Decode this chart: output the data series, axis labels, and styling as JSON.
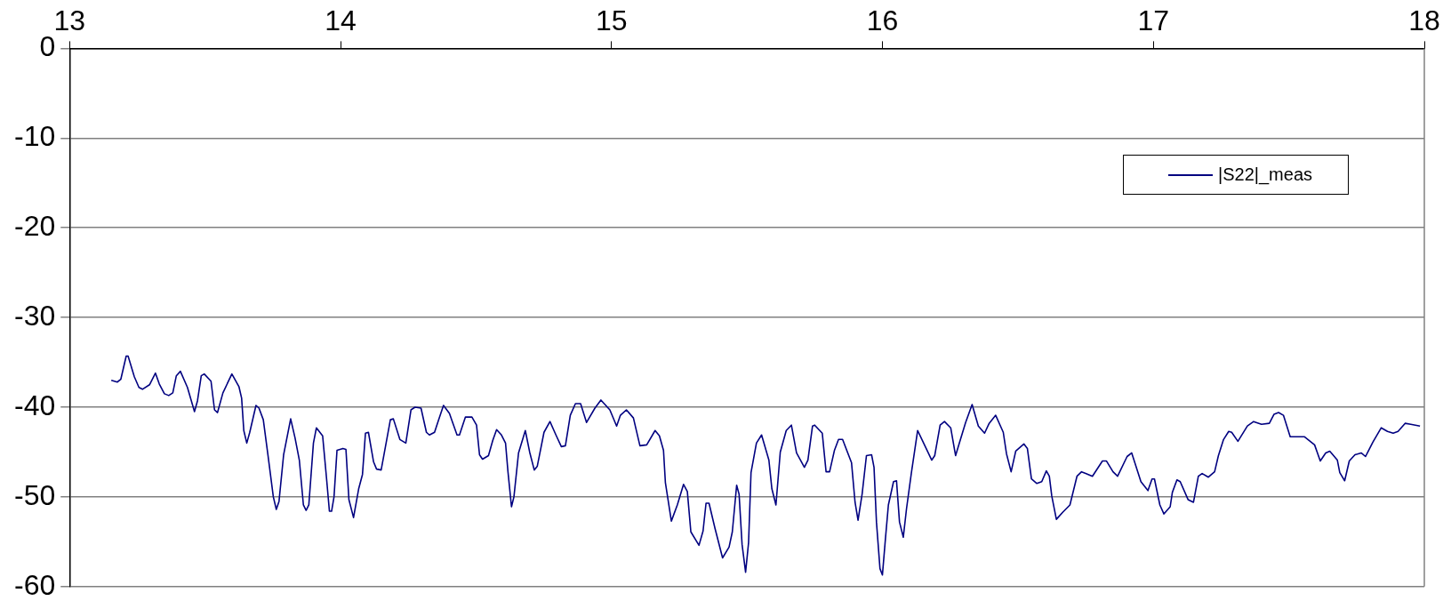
{
  "chart_data": {
    "type": "line",
    "xlim": [
      13,
      18
    ],
    "xticks": [
      13,
      14,
      15,
      16,
      17,
      18
    ],
    "ylim": [
      -60,
      0
    ],
    "yticks": [
      -60,
      -50,
      -40,
      -30,
      -20,
      -10,
      0
    ],
    "grid": "y",
    "legend": "top right",
    "marker": "none",
    "line_style": "solid",
    "series": [
      {
        "name": "|S22|_meas",
        "color": "#000080",
        "x": [
          13.154,
          13.176,
          13.189,
          13.209,
          13.216,
          13.239,
          13.256,
          13.269,
          13.295,
          13.317,
          13.331,
          13.35,
          13.366,
          13.381,
          13.394,
          13.409,
          13.435,
          13.461,
          13.472,
          13.486,
          13.497,
          13.522,
          13.535,
          13.546,
          13.566,
          13.599,
          13.625,
          13.635,
          13.643,
          13.654,
          13.665,
          13.688,
          13.699,
          13.715,
          13.732,
          13.752,
          13.763,
          13.773,
          13.79,
          13.816,
          13.832,
          13.848,
          13.863,
          13.873,
          13.883,
          13.9,
          13.911,
          13.934,
          13.948,
          13.959,
          13.967,
          13.976,
          13.987,
          14.009,
          14.02,
          14.031,
          14.048,
          14.067,
          14.081,
          14.092,
          14.103,
          14.122,
          14.133,
          14.15,
          14.164,
          14.184,
          14.195,
          14.219,
          14.241,
          14.26,
          14.275,
          14.297,
          14.317,
          14.328,
          14.347,
          14.361,
          14.38,
          14.402,
          14.43,
          14.439,
          14.461,
          14.485,
          14.502,
          14.513,
          14.524,
          14.546,
          14.562,
          14.576,
          14.594,
          14.609,
          14.618,
          14.631,
          14.64,
          14.657,
          14.682,
          14.698,
          14.715,
          14.726,
          14.751,
          14.773,
          14.795,
          14.815,
          14.83,
          14.848,
          14.867,
          14.886,
          14.908,
          14.939,
          14.961,
          14.994,
          15.019,
          15.033,
          15.055,
          15.081,
          15.105,
          15.13,
          15.161,
          15.177,
          15.192,
          15.199,
          15.221,
          15.243,
          15.266,
          15.28,
          15.293,
          15.323,
          15.338,
          15.349,
          15.36,
          15.382,
          15.41,
          15.434,
          15.446,
          15.462,
          15.471,
          15.482,
          15.495,
          15.506,
          15.515,
          15.535,
          15.554,
          15.581,
          15.592,
          15.607,
          15.623,
          15.645,
          15.664,
          15.683,
          15.712,
          15.725,
          15.742,
          15.75,
          15.778,
          15.792,
          15.805,
          15.823,
          15.838,
          15.853,
          15.886,
          15.899,
          15.91,
          15.925,
          15.941,
          15.96,
          15.969,
          15.978,
          15.991,
          16.0,
          16.011,
          16.022,
          16.041,
          16.052,
          16.063,
          16.077,
          16.089,
          16.107,
          16.13,
          16.152,
          16.182,
          16.193,
          16.213,
          16.229,
          16.252,
          16.27,
          16.285,
          16.307,
          16.331,
          16.354,
          16.377,
          16.394,
          16.418,
          16.446,
          16.458,
          16.475,
          16.492,
          16.522,
          16.535,
          16.55,
          16.57,
          16.588,
          16.605,
          16.616,
          16.625,
          16.642,
          16.666,
          16.692,
          16.718,
          16.735,
          16.752,
          16.775,
          16.812,
          16.827,
          16.851,
          16.868,
          16.903,
          16.92,
          16.954,
          16.98,
          16.995,
          17.004,
          17.024,
          17.039,
          17.062,
          17.07,
          17.087,
          17.099,
          17.128,
          17.148,
          17.166,
          17.18,
          17.203,
          17.226,
          17.24,
          17.259,
          17.278,
          17.289,
          17.312,
          17.347,
          17.37,
          17.399,
          17.428,
          17.445,
          17.462,
          17.48,
          17.505,
          17.558,
          17.595,
          17.616,
          17.636,
          17.651,
          17.679,
          17.688,
          17.706,
          17.723,
          17.744,
          17.767,
          17.783,
          17.81,
          17.841,
          17.864,
          17.885,
          17.903,
          17.929,
          17.95,
          17.984
        ],
        "values": [
          -37.0,
          -37.2,
          -36.9,
          -34.3,
          -34.3,
          -36.6,
          -37.8,
          -38.0,
          -37.5,
          -36.2,
          -37.4,
          -38.5,
          -38.7,
          -38.4,
          -36.5,
          -36.0,
          -37.8,
          -40.5,
          -39.3,
          -36.5,
          -36.3,
          -37.1,
          -40.3,
          -40.6,
          -38.4,
          -36.3,
          -37.7,
          -39.0,
          -42.6,
          -44.0,
          -42.8,
          -39.8,
          -40.1,
          -41.4,
          -45.3,
          -50.0,
          -51.4,
          -50.5,
          -45.3,
          -41.3,
          -43.4,
          -45.9,
          -50.9,
          -51.5,
          -50.9,
          -44.0,
          -42.3,
          -43.2,
          -47.8,
          -51.6,
          -51.6,
          -50.0,
          -44.8,
          -44.6,
          -44.7,
          -50.3,
          -52.3,
          -49.1,
          -47.5,
          -42.9,
          -42.8,
          -46.1,
          -46.9,
          -47.0,
          -44.7,
          -41.4,
          -41.3,
          -43.6,
          -44.0,
          -40.3,
          -40.0,
          -40.1,
          -42.8,
          -43.1,
          -42.8,
          -41.5,
          -39.8,
          -40.7,
          -43.1,
          -43.1,
          -41.1,
          -41.1,
          -42.0,
          -45.3,
          -45.8,
          -45.4,
          -43.7,
          -42.5,
          -43.1,
          -44.0,
          -47.2,
          -51.1,
          -50.0,
          -45.1,
          -42.6,
          -45.0,
          -47.0,
          -46.6,
          -42.8,
          -41.6,
          -43.1,
          -44.4,
          -44.3,
          -40.9,
          -39.6,
          -39.6,
          -41.7,
          -40.1,
          -39.2,
          -40.3,
          -42.1,
          -40.9,
          -40.3,
          -41.2,
          -44.3,
          -44.2,
          -42.6,
          -43.2,
          -44.8,
          -48.4,
          -52.7,
          -50.9,
          -48.6,
          -49.4,
          -53.9,
          -55.4,
          -53.8,
          -50.7,
          -50.7,
          -53.5,
          -56.8,
          -55.6,
          -53.9,
          -48.7,
          -49.7,
          -55.3,
          -58.4,
          -55.1,
          -47.3,
          -44.0,
          -43.1,
          -45.9,
          -49.1,
          -50.9,
          -45.0,
          -42.6,
          -42.0,
          -45.1,
          -46.7,
          -45.9,
          -42.1,
          -42.0,
          -42.9,
          -47.2,
          -47.2,
          -44.8,
          -43.6,
          -43.6,
          -46.2,
          -50.6,
          -52.6,
          -49.7,
          -45.4,
          -45.3,
          -46.7,
          -52.8,
          -58.0,
          -58.7,
          -54.7,
          -50.9,
          -48.3,
          -48.2,
          -52.8,
          -54.5,
          -51.3,
          -47.3,
          -42.6,
          -44.0,
          -45.9,
          -45.4,
          -42.0,
          -41.6,
          -42.3,
          -45.4,
          -43.9,
          -41.7,
          -39.7,
          -42.1,
          -42.9,
          -41.8,
          -40.9,
          -42.8,
          -45.2,
          -47.2,
          -44.9,
          -44.1,
          -44.6,
          -48.0,
          -48.5,
          -48.3,
          -47.1,
          -47.7,
          -49.9,
          -52.5,
          -51.7,
          -50.9,
          -47.7,
          -47.2,
          -47.4,
          -47.7,
          -46.0,
          -46.0,
          -47.2,
          -47.7,
          -45.5,
          -45.1,
          -48.3,
          -49.3,
          -48.0,
          -48.0,
          -50.9,
          -51.9,
          -51.1,
          -49.5,
          -48.1,
          -48.3,
          -50.3,
          -50.6,
          -47.7,
          -47.4,
          -47.8,
          -47.2,
          -45.4,
          -43.6,
          -42.7,
          -42.8,
          -43.8,
          -42.1,
          -41.6,
          -41.9,
          -41.8,
          -40.8,
          -40.6,
          -40.9,
          -43.3,
          -43.3,
          -44.2,
          -46.0,
          -45.1,
          -44.9,
          -45.9,
          -47.3,
          -48.2,
          -46.0,
          -45.3,
          -45.1,
          -45.5,
          -43.9,
          -42.3,
          -42.7,
          -42.9,
          -42.7,
          -41.8,
          -41.9,
          -42.1
        ]
      }
    ]
  }
}
